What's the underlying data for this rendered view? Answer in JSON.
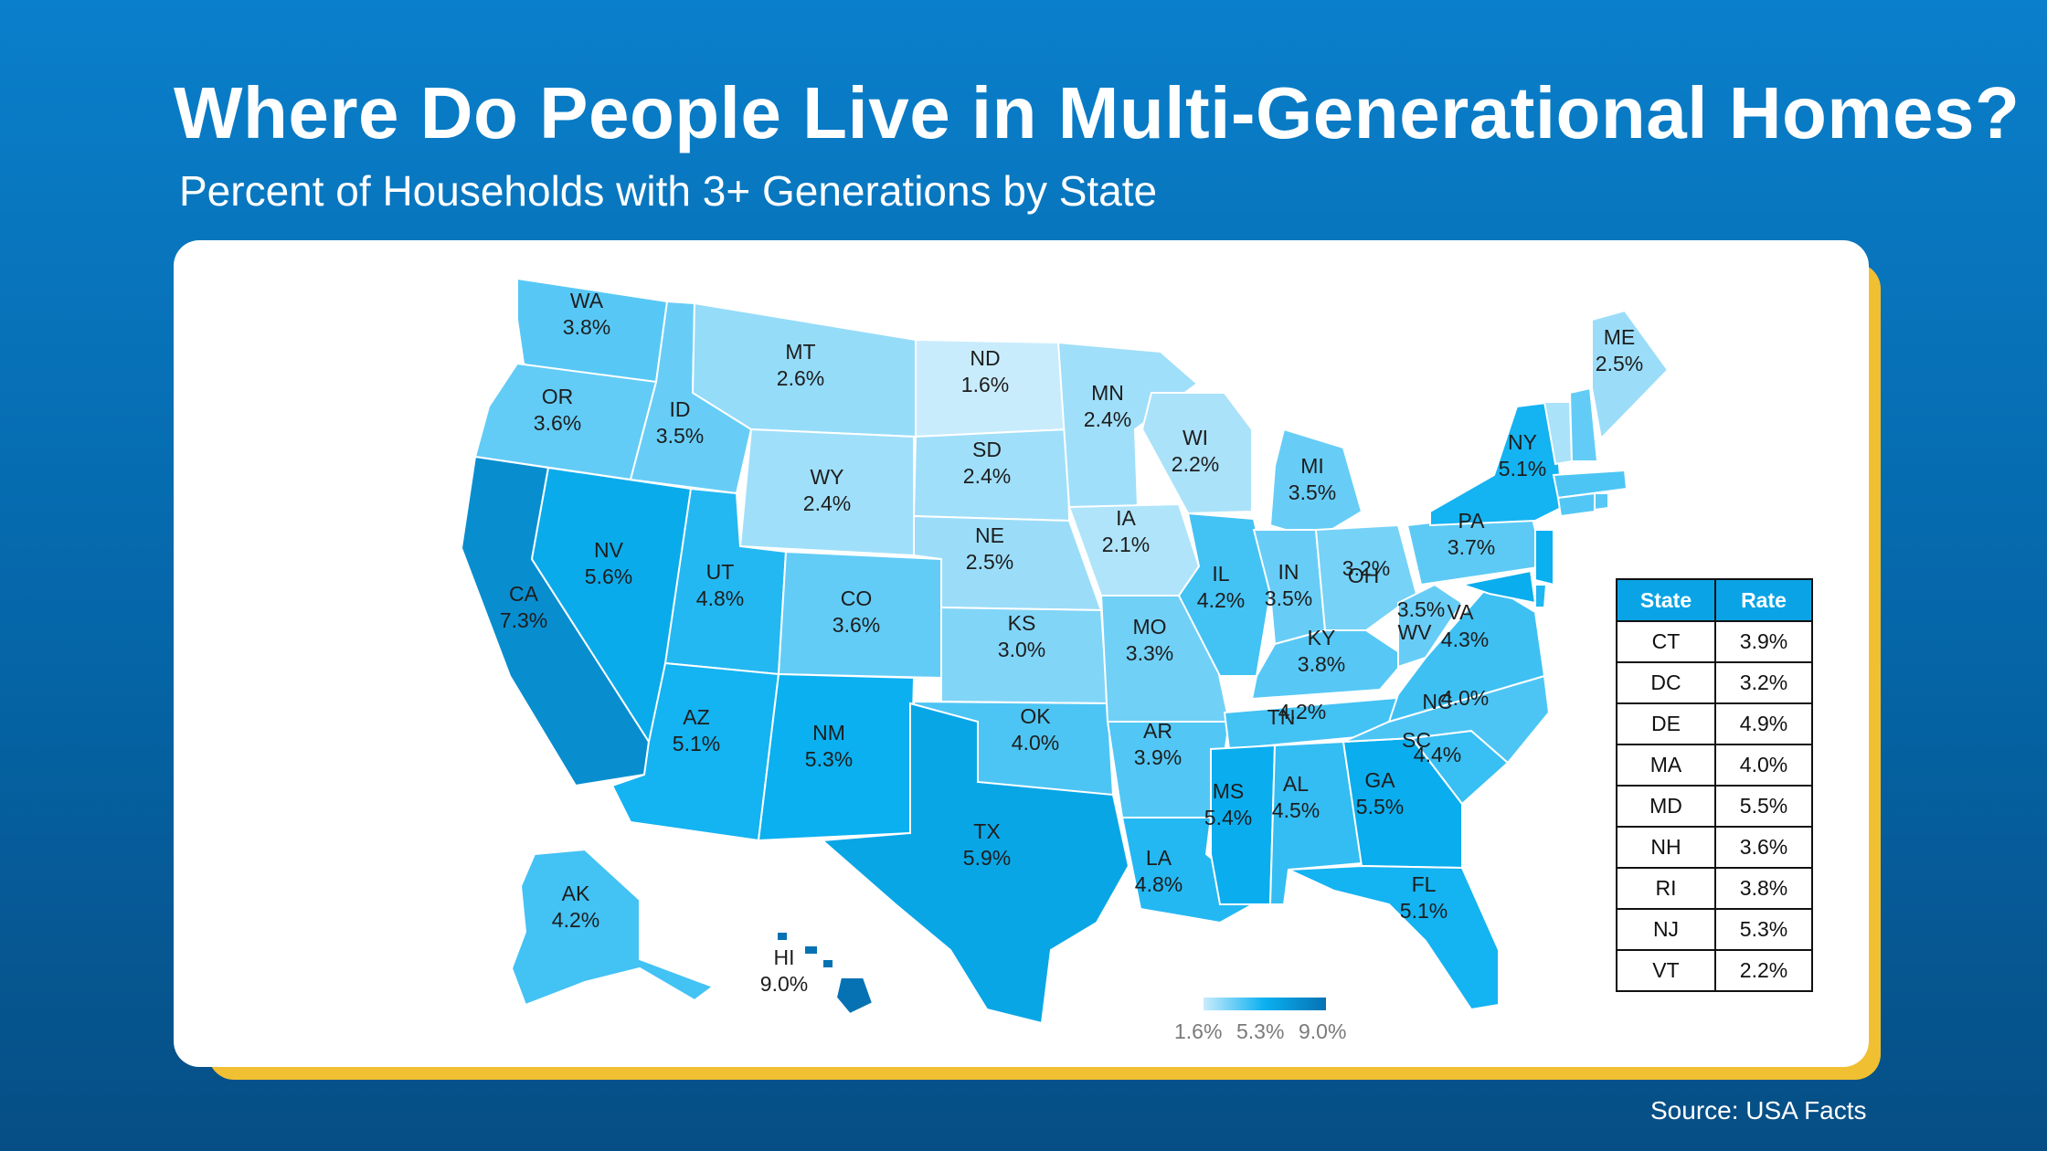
{
  "title": "Where Do People Live in Multi-Generational Homes?",
  "subtitle": "Percent of Households with 3+ Generations by State",
  "source": "Source: USA Facts",
  "colors": {
    "bg_top": "#0a7fcb",
    "bg_bottom": "#064e85",
    "card": "#ffffff",
    "accent_shadow": "#f0c032",
    "scale_low": "#c9ecfc",
    "scale_mid": "#0ab0f0",
    "scale_high": "#0672b3",
    "table_header": "#0aa4e6"
  },
  "legend": {
    "min_label": "1.6%",
    "mid_label": "5.3%",
    "max_label": "9.0%"
  },
  "states": [
    {
      "code": "WA",
      "label": "WA",
      "rate": "3.8%"
    },
    {
      "code": "OR",
      "label": "OR",
      "rate": "3.6%"
    },
    {
      "code": "CA",
      "label": "CA",
      "rate": "7.3%"
    },
    {
      "code": "ID",
      "label": "ID",
      "rate": "3.5%"
    },
    {
      "code": "NV",
      "label": "NV",
      "rate": "5.6%"
    },
    {
      "code": "MT",
      "label": "MT",
      "rate": "2.6%"
    },
    {
      "code": "WY",
      "label": "WY",
      "rate": "2.4%"
    },
    {
      "code": "UT",
      "label": "UT",
      "rate": "4.8%"
    },
    {
      "code": "AZ",
      "label": "AZ",
      "rate": "5.1%"
    },
    {
      "code": "CO",
      "label": "CO",
      "rate": "3.6%"
    },
    {
      "code": "NM",
      "label": "NM",
      "rate": "5.3%"
    },
    {
      "code": "ND",
      "label": "ND",
      "rate": "1.6%"
    },
    {
      "code": "SD",
      "label": "SD",
      "rate": "2.4%"
    },
    {
      "code": "NE",
      "label": "NE",
      "rate": "2.5%"
    },
    {
      "code": "KS",
      "label": "KS",
      "rate": "3.0%"
    },
    {
      "code": "OK",
      "label": "OK",
      "rate": "4.0%"
    },
    {
      "code": "TX",
      "label": "TX",
      "rate": "5.9%"
    },
    {
      "code": "MN",
      "label": "MN",
      "rate": "2.4%"
    },
    {
      "code": "IA",
      "label": "IA",
      "rate": "2.1%"
    },
    {
      "code": "MO",
      "label": "MO",
      "rate": "3.3%"
    },
    {
      "code": "AR",
      "label": "AR",
      "rate": "3.9%"
    },
    {
      "code": "LA",
      "label": "LA",
      "rate": "4.8%"
    },
    {
      "code": "WI",
      "label": "WI",
      "rate": "2.2%"
    },
    {
      "code": "IL",
      "label": "IL",
      "rate": "4.2%"
    },
    {
      "code": "MI",
      "label": "MI",
      "rate": "3.5%"
    },
    {
      "code": "IN",
      "label": "IN",
      "rate": "3.5%"
    },
    {
      "code": "OH",
      "label": "OH",
      "rate": "3.2%"
    },
    {
      "code": "KY",
      "label": "KY",
      "rate": "3.8%"
    },
    {
      "code": "TN",
      "label": "TN",
      "rate": "4.2%"
    },
    {
      "code": "MS",
      "label": "MS",
      "rate": "5.4%"
    },
    {
      "code": "AL",
      "label": "AL",
      "rate": "4.5%"
    },
    {
      "code": "GA",
      "label": "GA",
      "rate": "5.5%"
    },
    {
      "code": "FL",
      "label": "FL",
      "rate": "5.1%"
    },
    {
      "code": "SC",
      "label": "SC",
      "rate": "4.4%"
    },
    {
      "code": "NC",
      "label": "NC",
      "rate": "4.0%"
    },
    {
      "code": "VA",
      "label": "VA",
      "rate": "4.3%"
    },
    {
      "code": "WV",
      "label": "WV",
      "rate": "3.5%"
    },
    {
      "code": "PA",
      "label": "PA",
      "rate": "3.7%"
    },
    {
      "code": "NY",
      "label": "NY",
      "rate": "5.1%"
    },
    {
      "code": "ME",
      "label": "ME",
      "rate": "2.5%"
    },
    {
      "code": "AK",
      "label": "AK",
      "rate": "4.2%"
    },
    {
      "code": "HI",
      "label": "HI",
      "rate": "9.0%"
    }
  ],
  "table": {
    "headers": [
      "State",
      "Rate"
    ],
    "rows": [
      [
        "CT",
        "3.9%"
      ],
      [
        "DC",
        "3.2%"
      ],
      [
        "DE",
        "4.9%"
      ],
      [
        "MA",
        "4.0%"
      ],
      [
        "MD",
        "5.5%"
      ],
      [
        "NH",
        "3.6%"
      ],
      [
        "RI",
        "3.8%"
      ],
      [
        "NJ",
        "5.3%"
      ],
      [
        "VT",
        "2.2%"
      ]
    ]
  }
}
